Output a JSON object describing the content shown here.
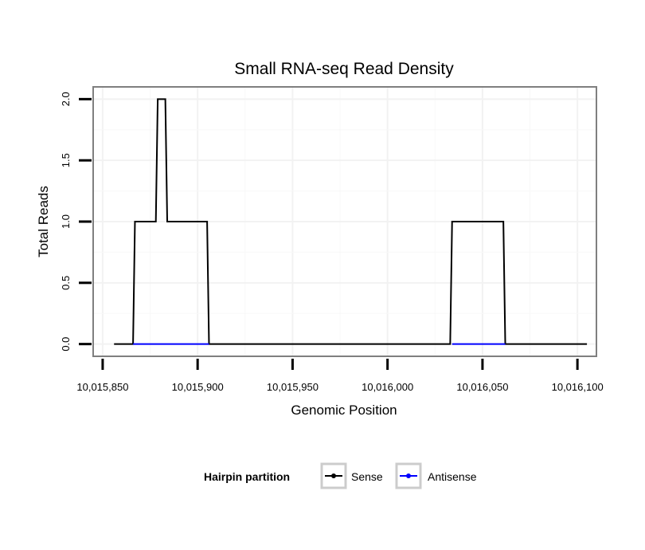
{
  "chart_data": {
    "type": "line",
    "title": "Small RNA-seq Read Density",
    "xlabel": "Genomic Position",
    "ylabel": "Total Reads",
    "xlim": [
      10015845,
      10016110
    ],
    "ylim": [
      -0.1,
      2.1
    ],
    "x_ticks": [
      10015850,
      10015900,
      10015950,
      10016000,
      10016050,
      10016100
    ],
    "x_tick_labels": [
      "10,015,850",
      "10,015,900",
      "10,015,950",
      "10,016,000",
      "10,016,050",
      "10,016,100"
    ],
    "y_ticks": [
      0,
      0.5,
      1,
      1.5,
      2
    ],
    "y_tick_labels": [
      "0.0",
      "0.5",
      "1.0",
      "1.5",
      "2.0"
    ],
    "grid": true,
    "legend": {
      "title": "Hairpin partition",
      "position": "bottom"
    },
    "series": [
      {
        "name": "Sense",
        "color": "#000000",
        "x": [
          10015856,
          10015866,
          10015867,
          10015878,
          10015879,
          10015883,
          10015884,
          10015905,
          10015906,
          10016033,
          10016034,
          10016061,
          10016062,
          10016105
        ],
        "values": [
          0,
          0,
          1,
          1,
          2,
          2,
          1,
          1,
          0,
          0,
          1,
          1,
          0,
          0
        ]
      },
      {
        "name": "Antisense",
        "color": "#0000ff",
        "x": [
          10015866,
          10015906,
          10016034,
          10016062
        ],
        "values": [
          0,
          0,
          0,
          0
        ],
        "segments": [
          [
            0,
            1
          ],
          [
            2,
            3
          ]
        ]
      }
    ]
  }
}
